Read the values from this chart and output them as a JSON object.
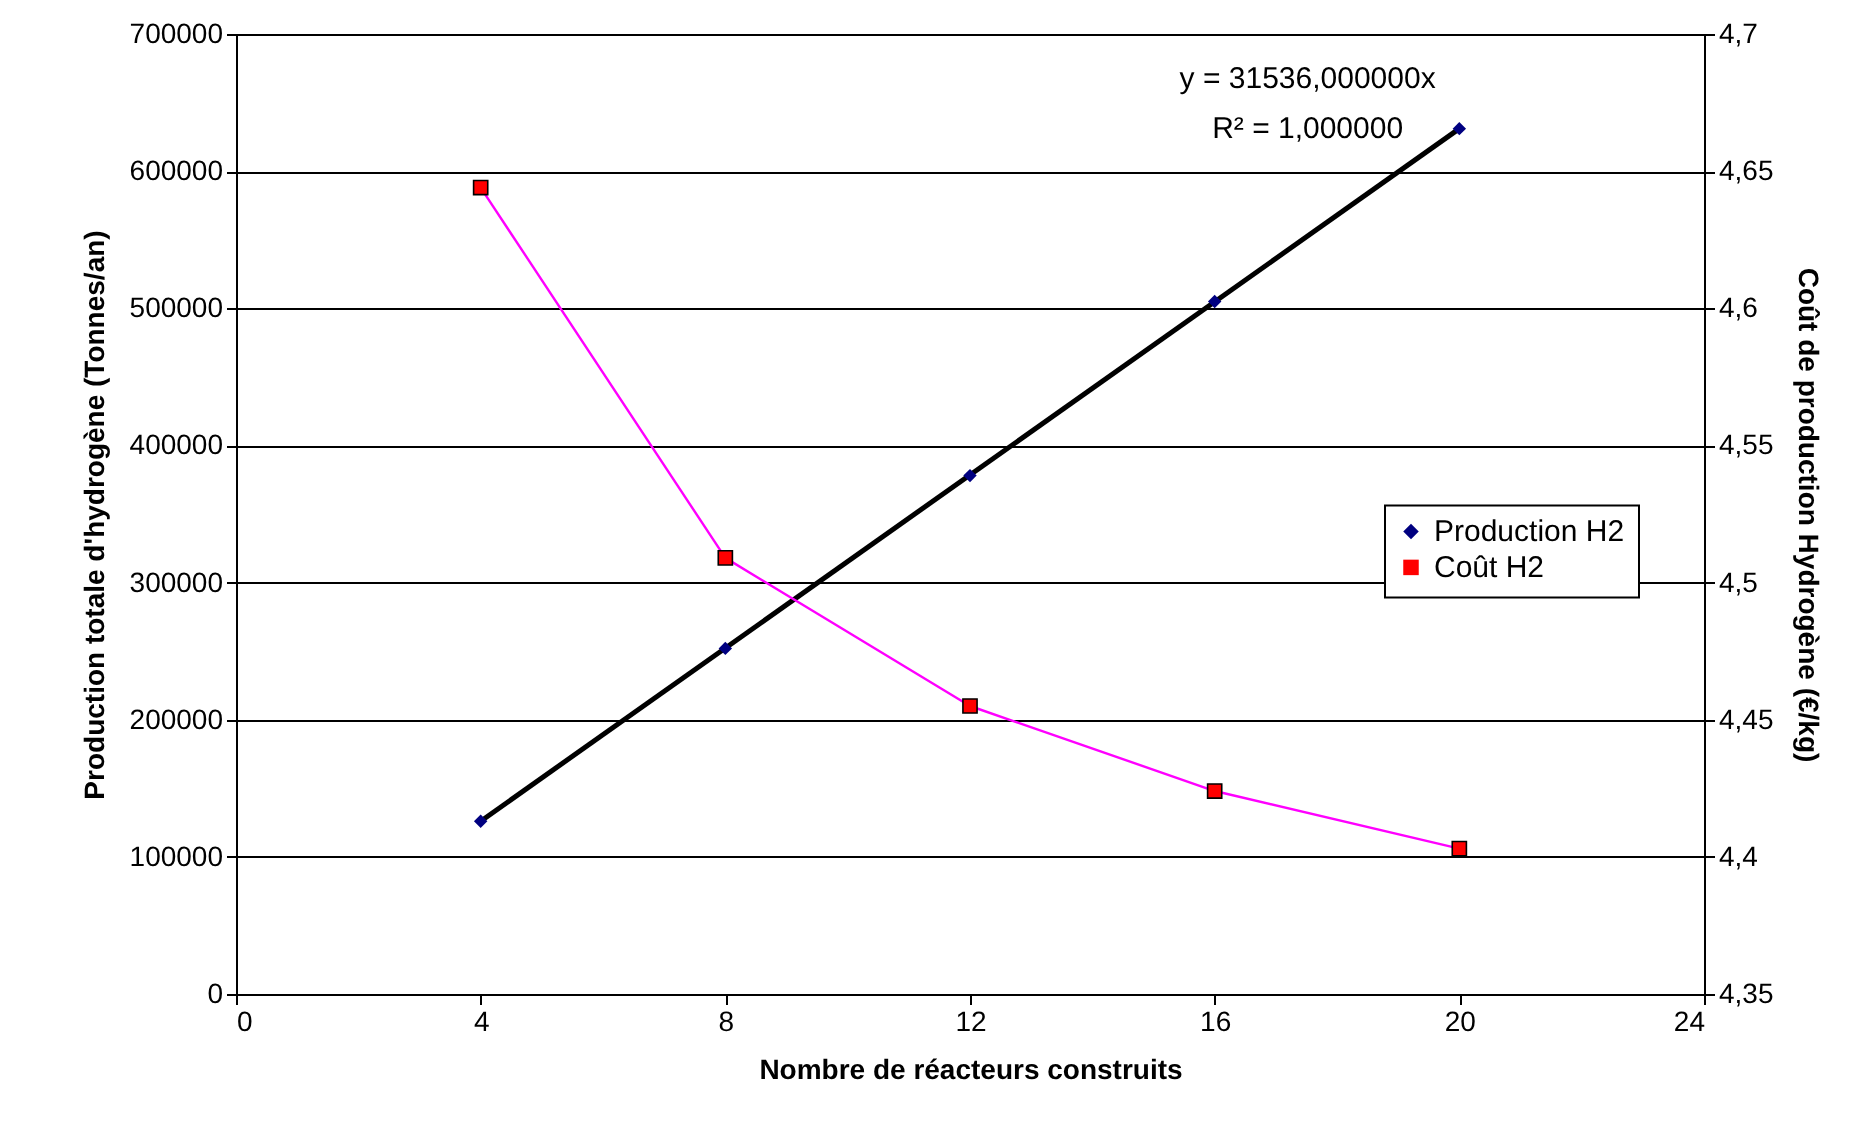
{
  "chart_data": {
    "type": "scatter",
    "xlabel": "Nombre de réacteurs construits",
    "ylabel": "Production totale d'hydrogène (Tonnes/an)",
    "y2label": "Coût de production Hydrogène (€/kg)",
    "x": [
      4,
      8,
      12,
      16,
      20
    ],
    "series": [
      {
        "type": "line",
        "color": "#000000",
        "x": [
          4,
          20
        ],
        "values": [
          126000,
          631000
        ],
        "marker": "none"
      },
      {
        "name": "Production H2",
        "type": "scatter",
        "color": "#000080",
        "values": [
          126000,
          252000,
          378000,
          505000,
          631000
        ],
        "marker": "diamond"
      },
      {
        "name": "Coût H2",
        "type": "line",
        "axis": "y2",
        "color": "#ff00ff",
        "colors": [
          "#ff0000",
          "#ff0000",
          "#ff0000",
          "#ff0000",
          "#ff0000"
        ],
        "values": [
          4.644,
          4.509,
          4.455,
          4.424,
          4.403
        ],
        "marker": "square"
      }
    ],
    "xlim": [
      0,
      24
    ],
    "xticks": [
      0,
      4,
      8,
      12,
      16,
      20,
      24
    ],
    "ylim": [
      0,
      700000
    ],
    "yticks": [
      0,
      100000,
      200000,
      300000,
      400000,
      500000,
      600000,
      700000
    ],
    "y2lim": [
      4.35,
      4.7
    ],
    "y2ticks": [
      {
        "value": 4.35,
        "label": "4,35"
      },
      {
        "value": 4.4,
        "label": "4,4"
      },
      {
        "value": 4.45,
        "label": "4,45"
      },
      {
        "value": 4.5,
        "label": "4,5"
      },
      {
        "value": 4.55,
        "label": "4,55"
      },
      {
        "value": 4.6,
        "label": "4,6"
      },
      {
        "value": 4.65,
        "label": "4,65"
      },
      {
        "value": 4.7,
        "label": "4,7"
      }
    ],
    "annotations": [
      "y = 31536,000000x",
      "R² = 1,000000"
    ],
    "grid": "y",
    "legend": "right"
  }
}
